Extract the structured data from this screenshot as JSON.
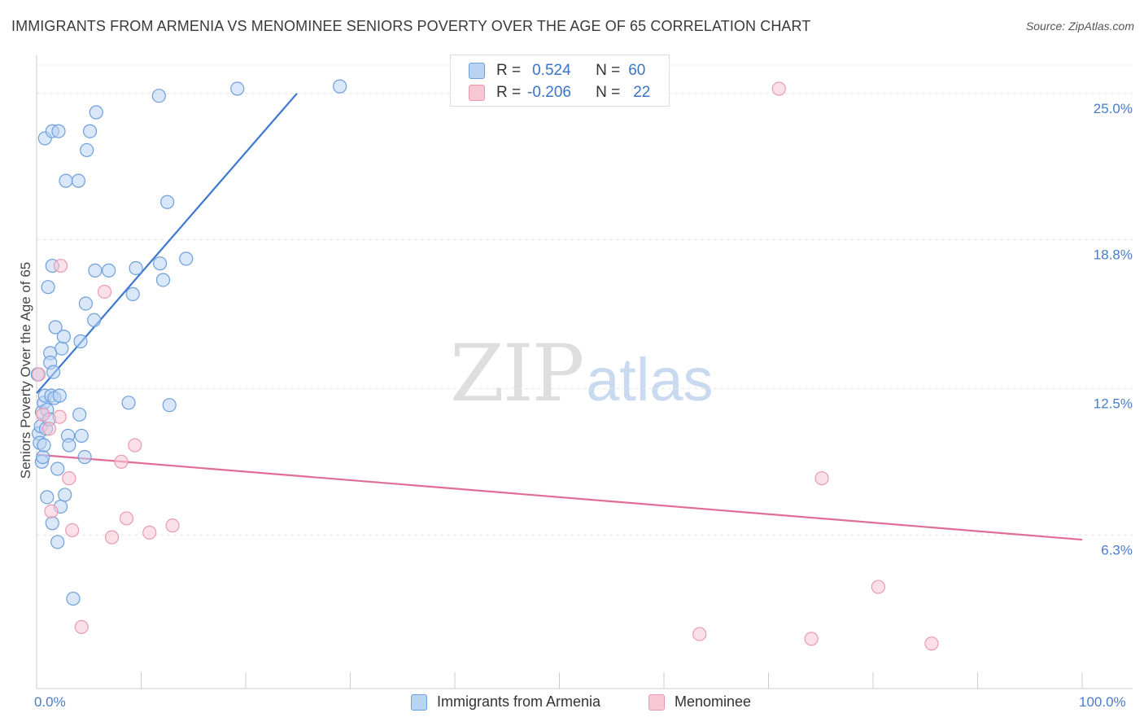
{
  "header": {
    "title": "IMMIGRANTS FROM ARMENIA VS MENOMINEE SENIORS POVERTY OVER THE AGE OF 65 CORRELATION CHART",
    "source": "Source: ZipAtlas.com"
  },
  "watermark": {
    "zip": "ZIP",
    "atlas": "atlas"
  },
  "legend": {
    "rows": [
      {
        "r_label": "R =",
        "r_value": "0.524",
        "n_label": "N =",
        "n_value": "60"
      },
      {
        "r_label": "R =",
        "r_value": "-0.206",
        "n_label": "N =",
        "n_value": "22"
      }
    ]
  },
  "bottom_legend": {
    "series1": "Immigrants from Armenia",
    "series2": "Menominee"
  },
  "colors": {
    "blue_fill": "#b9d3f3",
    "blue_stroke": "#6d9fdc",
    "blue_line": "#3c78d0",
    "pink_fill": "#f8c7d5",
    "pink_stroke": "#e99ab2",
    "pink_line": "#e06c98",
    "tick_text": "#4a7cc7",
    "grid": "#e4e4e4"
  },
  "chart_data": {
    "type": "scatter",
    "title": "IMMIGRANTS FROM ARMENIA VS MENOMINEE SENIORS POVERTY OVER THE AGE OF 65 CORRELATION CHART",
    "xlabel": "",
    "ylabel": "Seniors Poverty Over the Age of 65",
    "xlim": [
      0,
      100
    ],
    "ylim": [
      0,
      26.2
    ],
    "x_tick_labels": [
      "0.0%",
      "100.0%"
    ],
    "y_ticks": [
      6.3,
      12.5,
      18.8,
      25.0
    ],
    "y_tick_labels": [
      "6.3%",
      "12.5%",
      "18.8%",
      "25.0%"
    ],
    "grid": true,
    "series": [
      {
        "name": "Immigrants from Armenia",
        "R": 0.524,
        "N": 60,
        "trend": {
          "x": [
            0,
            24.9
          ],
          "y": [
            12.3,
            25.0
          ]
        },
        "points": [
          {
            "x": 0.1,
            "y": 13.1
          },
          {
            "x": 0.2,
            "y": 10.6
          },
          {
            "x": 0.3,
            "y": 10.2
          },
          {
            "x": 0.4,
            "y": 10.9
          },
          {
            "x": 0.5,
            "y": 11.5
          },
          {
            "x": 0.5,
            "y": 9.4
          },
          {
            "x": 0.6,
            "y": 9.6
          },
          {
            "x": 0.7,
            "y": 11.9
          },
          {
            "x": 0.8,
            "y": 12.2
          },
          {
            "x": 0.8,
            "y": 23.1
          },
          {
            "x": 0.9,
            "y": 10.8
          },
          {
            "x": 1.0,
            "y": 11.6
          },
          {
            "x": 1.0,
            "y": 7.9
          },
          {
            "x": 1.1,
            "y": 16.8
          },
          {
            "x": 1.2,
            "y": 11.2
          },
          {
            "x": 1.3,
            "y": 14.0
          },
          {
            "x": 1.3,
            "y": 13.6
          },
          {
            "x": 1.4,
            "y": 12.2
          },
          {
            "x": 1.5,
            "y": 23.4
          },
          {
            "x": 1.5,
            "y": 6.8
          },
          {
            "x": 1.5,
            "y": 17.7
          },
          {
            "x": 1.6,
            "y": 13.2
          },
          {
            "x": 1.7,
            "y": 12.1
          },
          {
            "x": 1.8,
            "y": 15.1
          },
          {
            "x": 2.0,
            "y": 6.0
          },
          {
            "x": 2.0,
            "y": 9.1
          },
          {
            "x": 2.1,
            "y": 23.4
          },
          {
            "x": 2.2,
            "y": 12.2
          },
          {
            "x": 2.3,
            "y": 7.5
          },
          {
            "x": 2.4,
            "y": 14.2
          },
          {
            "x": 2.6,
            "y": 14.7
          },
          {
            "x": 2.7,
            "y": 8.0
          },
          {
            "x": 2.8,
            "y": 21.3
          },
          {
            "x": 3.0,
            "y": 10.5
          },
          {
            "x": 3.1,
            "y": 10.1
          },
          {
            "x": 3.5,
            "y": 3.6
          },
          {
            "x": 4.1,
            "y": 11.4
          },
          {
            "x": 4.2,
            "y": 14.5
          },
          {
            "x": 4.3,
            "y": 10.5
          },
          {
            "x": 4.6,
            "y": 9.6
          },
          {
            "x": 4.7,
            "y": 16.1
          },
          {
            "x": 4.8,
            "y": 22.6
          },
          {
            "x": 5.1,
            "y": 23.4
          },
          {
            "x": 5.5,
            "y": 15.4
          },
          {
            "x": 5.6,
            "y": 17.5
          },
          {
            "x": 5.7,
            "y": 24.2
          },
          {
            "x": 6.9,
            "y": 17.5
          },
          {
            "x": 8.8,
            "y": 11.9
          },
          {
            "x": 9.2,
            "y": 16.5
          },
          {
            "x": 9.5,
            "y": 17.6
          },
          {
            "x": 11.7,
            "y": 24.9
          },
          {
            "x": 11.8,
            "y": 17.8
          },
          {
            "x": 12.1,
            "y": 17.1
          },
          {
            "x": 12.5,
            "y": 20.4
          },
          {
            "x": 12.7,
            "y": 11.8
          },
          {
            "x": 14.3,
            "y": 18.0
          },
          {
            "x": 19.2,
            "y": 25.2
          },
          {
            "x": 29.0,
            "y": 25.3
          },
          {
            "x": 4.0,
            "y": 21.3
          },
          {
            "x": 0.7,
            "y": 10.1
          }
        ]
      },
      {
        "name": "Menominee",
        "R": -0.206,
        "N": 22,
        "trend": {
          "x": [
            0,
            100
          ],
          "y": [
            9.7,
            6.1
          ]
        },
        "points": [
          {
            "x": 0.2,
            "y": 13.1
          },
          {
            "x": 0.6,
            "y": 11.4
          },
          {
            "x": 1.2,
            "y": 10.8
          },
          {
            "x": 1.4,
            "y": 7.3
          },
          {
            "x": 2.2,
            "y": 11.3
          },
          {
            "x": 2.3,
            "y": 17.7
          },
          {
            "x": 3.1,
            "y": 8.7
          },
          {
            "x": 3.4,
            "y": 6.5
          },
          {
            "x": 4.3,
            "y": 2.4
          },
          {
            "x": 6.5,
            "y": 16.6
          },
          {
            "x": 7.2,
            "y": 6.2
          },
          {
            "x": 8.1,
            "y": 9.4
          },
          {
            "x": 8.6,
            "y": 7.0
          },
          {
            "x": 9.4,
            "y": 10.1
          },
          {
            "x": 10.8,
            "y": 6.4
          },
          {
            "x": 13.0,
            "y": 6.7
          },
          {
            "x": 63.4,
            "y": 2.1
          },
          {
            "x": 71.0,
            "y": 25.2
          },
          {
            "x": 74.1,
            "y": 1.9
          },
          {
            "x": 75.1,
            "y": 8.7
          },
          {
            "x": 80.5,
            "y": 4.1
          },
          {
            "x": 85.6,
            "y": 1.7
          }
        ]
      }
    ]
  }
}
